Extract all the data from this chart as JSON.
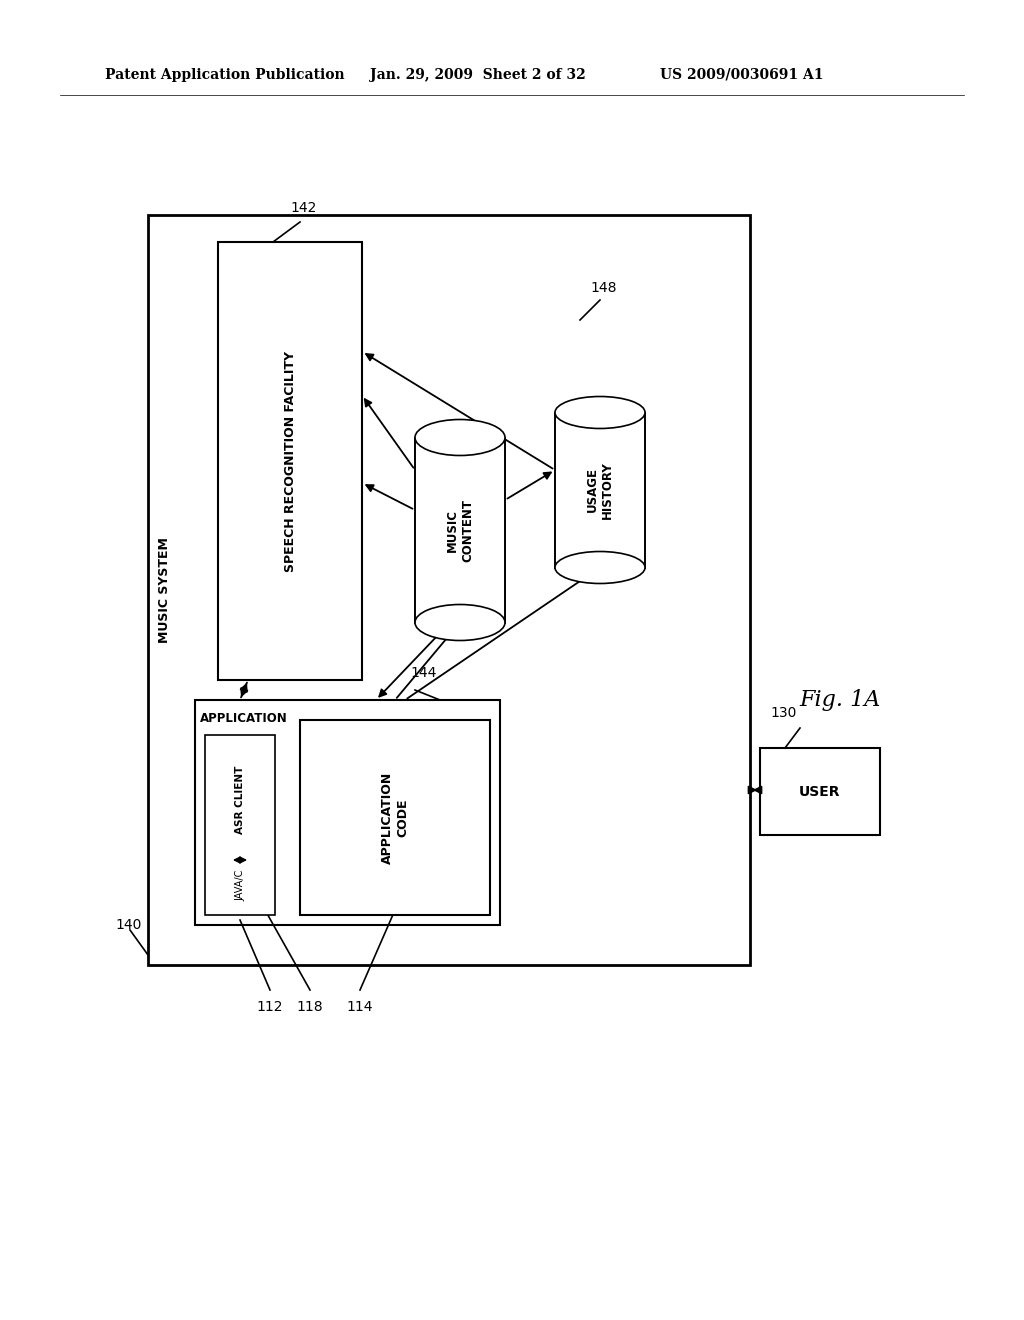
{
  "bg_color": "#ffffff",
  "header_left": "Patent Application Publication",
  "header_mid": "Jan. 29, 2009  Sheet 2 of 32",
  "header_right": "US 2009/0030691 A1",
  "fig_label": "Fig. 1A",
  "music_system_label": "MUSIC SYSTEM",
  "music_system_ref": "140",
  "speech_box_label": "SPEECH RECOGNITION FACILITY",
  "speech_box_ref": "142",
  "app_outer_label": "APPLICATION",
  "app_inner_label": "ASR CLIENT",
  "java_label": "JAVA/C",
  "app_code_label": "APPLICATION\nCODE",
  "music_content_label": "MUSIC\nCONTENT",
  "usage_history_label": "USAGE\nHISTORY",
  "usage_history_ref": "148",
  "java_ref": "144",
  "ref_112": "112",
  "ref_118": "118",
  "ref_114": "114",
  "user_label": "USER",
  "user_ref": "130"
}
